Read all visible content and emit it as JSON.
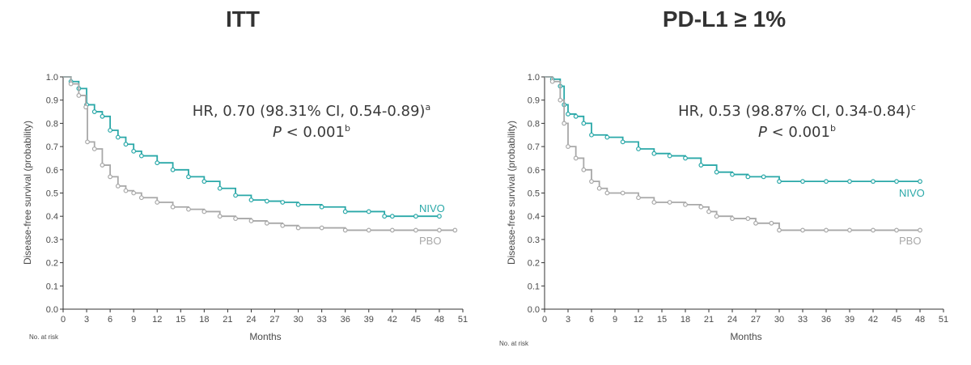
{
  "chart_data": [
    {
      "type": "line",
      "title": "ITT",
      "xlabel": "Months",
      "ylabel": "Disease-free survival (probability)",
      "risk_label": "No. at risk",
      "xlim": [
        0,
        51
      ],
      "ylim": [
        0,
        1
      ],
      "xticks": [
        "0",
        "3",
        "6",
        "9",
        "12",
        "15",
        "18",
        "21",
        "24",
        "27",
        "30",
        "33",
        "36",
        "39",
        "42",
        "45",
        "48",
        "51"
      ],
      "yticks": [
        "0.0",
        "0.1",
        "0.2",
        "0.3",
        "0.4",
        "0.5",
        "0.6",
        "0.7",
        "0.8",
        "0.9",
        "1.0"
      ],
      "annotation": {
        "hr": "HR, 0.70 (98.31% CI, 0.54-0.89)",
        "hr_sup": "a",
        "p_italic": "P",
        "p_rest": " < 0.001",
        "p_sup": "b"
      },
      "series": [
        {
          "name": "NIVO",
          "color": "#2aa8a8",
          "x": [
            0,
            1,
            2,
            3,
            4,
            5,
            6,
            7,
            8,
            9,
            10,
            12,
            14,
            16,
            18,
            20,
            22,
            24,
            26,
            28,
            30,
            33,
            36,
            39,
            41,
            42,
            45,
            48
          ],
          "y": [
            1.0,
            0.98,
            0.95,
            0.88,
            0.85,
            0.83,
            0.77,
            0.74,
            0.71,
            0.68,
            0.66,
            0.63,
            0.6,
            0.57,
            0.55,
            0.52,
            0.49,
            0.47,
            0.465,
            0.46,
            0.45,
            0.44,
            0.42,
            0.42,
            0.4,
            0.4,
            0.4,
            0.4
          ]
        },
        {
          "name": "PBO",
          "color": "#a8a8a8",
          "x": [
            0,
            1,
            2,
            2.9,
            3.1,
            4,
            5,
            6,
            7,
            8,
            9,
            10,
            12,
            14,
            16,
            18,
            20,
            22,
            24,
            26,
            28,
            30,
            33,
            36,
            39,
            42,
            45,
            48,
            50
          ],
          "y": [
            1.0,
            0.97,
            0.92,
            0.87,
            0.72,
            0.69,
            0.62,
            0.57,
            0.53,
            0.51,
            0.5,
            0.48,
            0.46,
            0.44,
            0.43,
            0.42,
            0.4,
            0.39,
            0.38,
            0.37,
            0.36,
            0.35,
            0.35,
            0.34,
            0.34,
            0.34,
            0.34,
            0.34,
            0.34
          ]
        }
      ]
    },
    {
      "type": "line",
      "title": "PD-L1 ≥ 1%",
      "xlabel": "Months",
      "ylabel": "Disease-free survival (probability)",
      "risk_label": "No. at risk",
      "xlim": [
        0,
        51
      ],
      "ylim": [
        0,
        1
      ],
      "xticks": [
        "0",
        "3",
        "6",
        "9",
        "12",
        "15",
        "18",
        "21",
        "24",
        "27",
        "30",
        "33",
        "36",
        "39",
        "42",
        "45",
        "48",
        "51"
      ],
      "yticks": [
        "0.0",
        "0.1",
        "0.2",
        "0.3",
        "0.4",
        "0.5",
        "0.6",
        "0.7",
        "0.8",
        "0.9",
        "1.0"
      ],
      "annotation": {
        "hr": "HR, 0.53 (98.87% CI, 0.34-0.84)",
        "hr_sup": "c",
        "p_italic": "P",
        "p_rest": " < 0.001",
        "p_sup": "b"
      },
      "series": [
        {
          "name": "NIVO",
          "color": "#2aa8a8",
          "x": [
            0,
            1,
            2,
            2.5,
            3,
            4,
            5,
            6,
            8,
            10,
            12,
            14,
            16,
            18,
            20,
            22,
            24,
            26,
            28,
            30,
            33,
            36,
            39,
            42,
            45,
            48
          ],
          "y": [
            1.0,
            0.99,
            0.96,
            0.88,
            0.84,
            0.83,
            0.8,
            0.75,
            0.74,
            0.72,
            0.69,
            0.67,
            0.66,
            0.65,
            0.62,
            0.59,
            0.58,
            0.57,
            0.57,
            0.55,
            0.55,
            0.55,
            0.55,
            0.55,
            0.55,
            0.55
          ]
        },
        {
          "name": "PBO",
          "color": "#a8a8a8",
          "x": [
            0,
            1,
            2,
            2.5,
            3,
            4,
            5,
            6,
            7,
            8,
            10,
            12,
            14,
            16,
            18,
            20,
            21,
            22,
            24,
            26,
            27,
            29,
            30,
            33,
            36,
            39,
            42,
            45,
            48
          ],
          "y": [
            1.0,
            0.98,
            0.9,
            0.8,
            0.7,
            0.65,
            0.6,
            0.55,
            0.52,
            0.5,
            0.5,
            0.48,
            0.46,
            0.46,
            0.45,
            0.44,
            0.42,
            0.4,
            0.39,
            0.39,
            0.37,
            0.37,
            0.34,
            0.34,
            0.34,
            0.34,
            0.34,
            0.34,
            0.34
          ]
        }
      ]
    }
  ]
}
